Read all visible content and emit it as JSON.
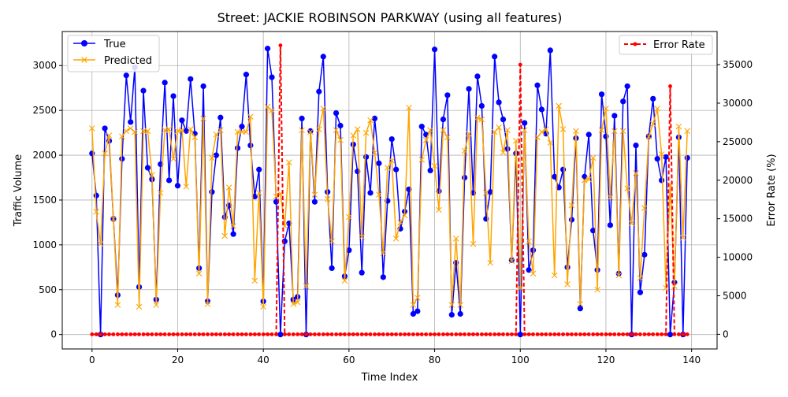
{
  "chart_data": {
    "type": "line",
    "title": "Street: JACKIE ROBINSON PARKWAY (using all features)",
    "xlabel": "Time Index",
    "ylabel": "Traffic Volume",
    "y2label": "Error Rate (%)",
    "xlim": [
      -6.95,
      145.95
    ],
    "ylim": [
      -161,
      3380
    ],
    "y2lim": [
      -1900,
      39300
    ],
    "xticks": [
      0,
      20,
      40,
      60,
      80,
      100,
      120,
      140
    ],
    "yticks": [
      0,
      500,
      1000,
      1500,
      2000,
      2500,
      3000
    ],
    "y2ticks": [
      0,
      5000,
      10000,
      15000,
      20000,
      25000,
      30000,
      35000
    ],
    "grid": true,
    "legend_left": {
      "placement": "top-left",
      "entries": [
        "True",
        "Predicted"
      ]
    },
    "legend_right": {
      "placement": "top-right",
      "entries": [
        "Error Rate"
      ]
    },
    "colors": {
      "true": "#0000ff",
      "predicted": "#ffa500",
      "error": "#ff0000",
      "grid": "#b0b0b0"
    },
    "series": [
      {
        "name": "True",
        "axis": "left",
        "values": [
          2020,
          1550,
          0,
          2300,
          2160,
          1290,
          440,
          1960,
          2890,
          2370,
          2980,
          530,
          2720,
          1860,
          1730,
          390,
          1900,
          2810,
          1720,
          2660,
          1660,
          2390,
          2270,
          2850,
          2240,
          740,
          2770,
          370,
          1590,
          2000,
          2420,
          1310,
          1440,
          1120,
          2080,
          2320,
          2900,
          2110,
          1540,
          1840,
          370,
          3190,
          2870,
          1480,
          0,
          1040,
          1240,
          390,
          420,
          2410,
          0,
          2270,
          1480,
          2710,
          3100,
          1590,
          740,
          2470,
          2330,
          650,
          940,
          2120,
          1820,
          690,
          1980,
          1580,
          2410,
          1910,
          640,
          1490,
          2180,
          1840,
          1180,
          1370,
          1620,
          230,
          260,
          2320,
          2230,
          1830,
          3180,
          1600,
          2400,
          2670,
          220,
          800,
          230,
          1750,
          2740,
          1580,
          2880,
          2550,
          1290,
          1590,
          3100,
          2590,
          2400,
          2070,
          830,
          2020,
          0,
          2360,
          720,
          940,
          2780,
          2510,
          2240,
          3170,
          1760,
          1640,
          1840,
          750,
          1280,
          2190,
          290,
          1760,
          2230,
          1160,
          720,
          2680,
          2210,
          1220,
          2440,
          680,
          2600,
          2770,
          0,
          2110,
          470,
          890,
          2210,
          2630,
          1960,
          1720,
          1980,
          0,
          580,
          2200,
          0,
          1970
        ]
      },
      {
        "name": "Predicted",
        "axis": "left",
        "values": [
          2300,
          1370,
          1010,
          2020,
          2220,
          1290,
          330,
          2210,
          2270,
          2300,
          2260,
          310,
          2270,
          2270,
          1780,
          330,
          1580,
          2280,
          2290,
          1960,
          2270,
          2280,
          1650,
          2290,
          2200,
          680,
          2410,
          340,
          1970,
          2230,
          2280,
          1100,
          1640,
          1210,
          2260,
          2260,
          2260,
          2430,
          600,
          1580,
          310,
          2540,
          2500,
          1540,
          1570,
          1210,
          1920,
          340,
          360,
          2280,
          540,
          2260,
          1560,
          2290,
          2520,
          1510,
          1040,
          2280,
          2170,
          600,
          1310,
          2220,
          2290,
          1090,
          2250,
          2390,
          2030,
          1560,
          910,
          1860,
          1940,
          1070,
          1250,
          1330,
          2530,
          330,
          410,
          1950,
          2170,
          2280,
          1880,
          1390,
          2280,
          2200,
          330,
          1070,
          330,
          2050,
          2240,
          1010,
          2420,
          2400,
          1580,
          800,
          2260,
          2310,
          2030,
          2280,
          820,
          2160,
          520,
          2280,
          1040,
          680,
          2200,
          2260,
          2290,
          2140,
          660,
          2550,
          2290,
          560,
          1440,
          2270,
          340,
          1720,
          1730,
          1970,
          500,
          2280,
          2520,
          1530,
          2270,
          660,
          2270,
          1630,
          1240,
          1800,
          630,
          1410,
          2210,
          2350,
          2520,
          2010,
          520,
          1670,
          540,
          2320,
          1080,
          2270
        ]
      },
      {
        "name": "Error Rate",
        "axis": "right",
        "values": [
          0,
          0,
          0,
          0,
          0,
          0,
          0,
          0,
          0,
          0,
          0,
          0,
          0,
          0,
          0,
          0,
          0,
          0,
          0,
          0,
          0,
          0,
          0,
          0,
          0,
          0,
          0,
          0,
          0,
          0,
          0,
          0,
          0,
          0,
          0,
          0,
          0,
          0,
          0,
          0,
          0,
          0,
          0,
          0,
          37500,
          0,
          0,
          0,
          0,
          0,
          0,
          0,
          0,
          0,
          0,
          0,
          0,
          0,
          0,
          0,
          0,
          0,
          0,
          0,
          0,
          0,
          0,
          0,
          0,
          0,
          0,
          0,
          0,
          0,
          0,
          0,
          0,
          0,
          0,
          0,
          0,
          0,
          0,
          0,
          0,
          0,
          0,
          0,
          0,
          0,
          0,
          0,
          0,
          0,
          0,
          0,
          0,
          0,
          0,
          0,
          35000,
          0,
          0,
          0,
          0,
          0,
          0,
          0,
          0,
          0,
          0,
          0,
          0,
          0,
          0,
          0,
          0,
          0,
          0,
          0,
          0,
          0,
          0,
          0,
          0,
          0,
          0,
          0,
          0,
          0,
          0,
          0,
          0,
          0,
          0,
          32200,
          0,
          0,
          0,
          0
        ]
      }
    ]
  }
}
